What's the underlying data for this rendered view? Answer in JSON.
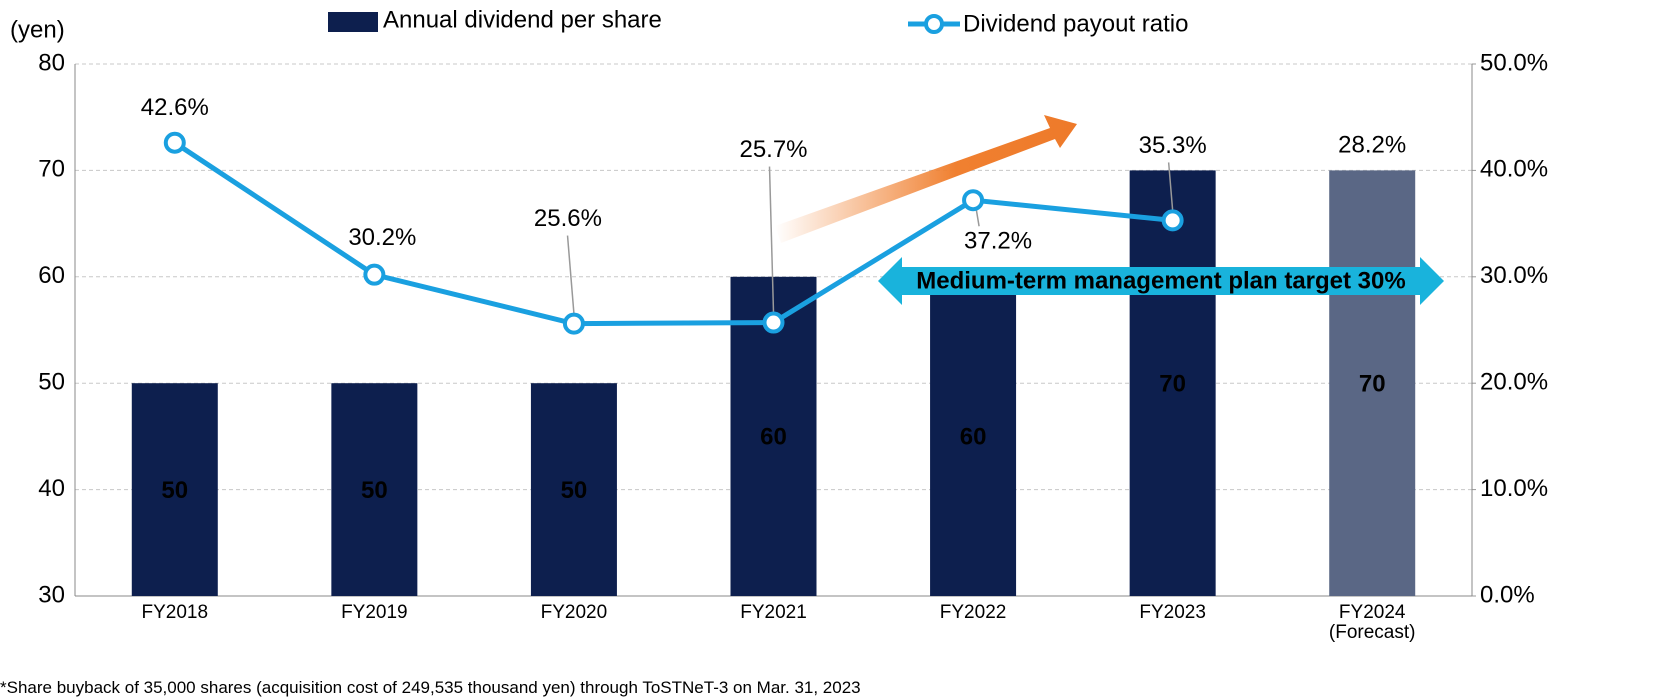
{
  "chart_data": {
    "type": "bar_line",
    "y_axis_label": "(yen)",
    "categories": [
      "FY2018",
      "FY2019",
      "FY2020",
      "FY2021",
      "FY2022",
      "FY2023",
      "FY2024 (Forecast)"
    ],
    "series": [
      {
        "name": "Annual dividend per share",
        "type": "bar",
        "color": "#0d1f4e",
        "colors": [
          "#0d1f4e",
          "#0d1f4e",
          "#0d1f4e",
          "#0d1f4e",
          "#0d1f4e",
          "#0d1f4e",
          "#5a6785"
        ],
        "values": [
          50,
          50,
          50,
          60,
          60,
          70,
          70
        ]
      },
      {
        "name": "Dividend payout ratio",
        "type": "line",
        "axis": "y2",
        "color": "#1aa0e0",
        "values": [
          42.6,
          30.2,
          25.6,
          25.7,
          37.2,
          35.3,
          null
        ],
        "value_labels": [
          "42.6%",
          "30.2%",
          "25.6%",
          "25.7%",
          "37.2%",
          "35.3%",
          null
        ]
      }
    ],
    "forecast_payout_label": "28.2%",
    "target_annotation": "Medium-term management plan target 30%",
    "footnote": "*Share buyback of 35,000 shares (acquisition cost of 249,535 thousand yen) through ToSTNeT-3 on Mar. 31, 2023",
    "ylim": [
      30,
      80
    ],
    "yticks": [
      30,
      40,
      50,
      60,
      70,
      80
    ],
    "y2lim": [
      0,
      50
    ],
    "y2ticks": [
      {
        "value": 0,
        "label": "0.0%"
      },
      {
        "value": 10,
        "label": "10.0%"
      },
      {
        "value": 20,
        "label": "20.0%"
      },
      {
        "value": 30,
        "label": "30.0%"
      },
      {
        "value": 40,
        "label": "40.0%"
      },
      {
        "value": 50,
        "label": "50.0%"
      }
    ],
    "grid": true
  }
}
